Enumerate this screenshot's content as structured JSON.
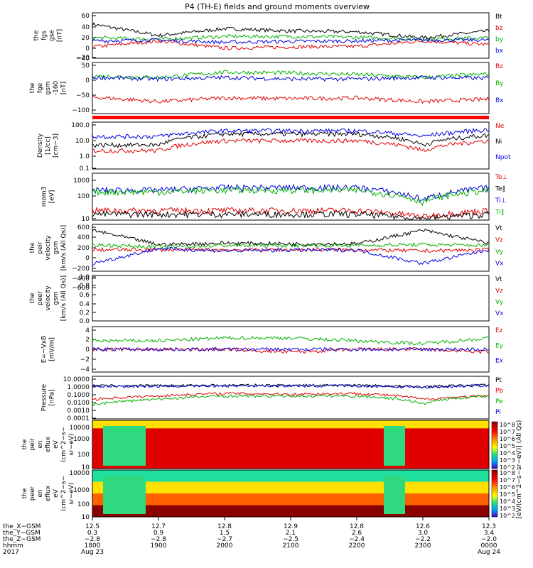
{
  "title": "P4 (TH-E) fields and ground moments overview",
  "panels": [
    {
      "ylabel": [
        "the",
        "fgs",
        "gse",
        "[nT]"
      ],
      "yticks": [
        "60",
        "40",
        "20",
        "0",
        "−20",
        "−40"
      ],
      "legend": [
        {
          "text": "Bt",
          "color": "#000000"
        },
        {
          "text": "bz",
          "color": "#e00000"
        },
        {
          "text": "by",
          "color": "#00b000"
        },
        {
          "text": "bx",
          "color": "#0000e0"
        }
      ]
    },
    {
      "ylabel": [
        "the",
        "fge",
        "gsm",
        "-160",
        "[nT]"
      ],
      "yticks": [
        "50",
        "0",
        "−50",
        "−100"
      ],
      "legend": [
        {
          "text": "Bz",
          "color": "#e00000"
        },
        {
          "text": "By",
          "color": "#00b000"
        },
        {
          "text": "Bx",
          "color": "#0000e0"
        }
      ]
    },
    {
      "ylabel": [
        "Density",
        "[1/cc]",
        "[cm−3]"
      ],
      "yticks": [
        "100.0",
        "10.0",
        "1.0",
        "0.1"
      ],
      "legend": [
        {
          "text": "Ne",
          "color": "#e00000"
        },
        {
          "text": "Ni",
          "color": "#000000"
        },
        {
          "text": "Npot",
          "color": "#0000e0"
        }
      ]
    },
    {
      "ylabel": [
        "mom3",
        "[eV]"
      ],
      "yticks": [
        "1000",
        "100",
        "10"
      ],
      "legend": [
        {
          "text": "Te⊥",
          "color": "#e00000"
        },
        {
          "text": "Te∥",
          "color": "#000000"
        },
        {
          "text": "Ti⊥",
          "color": "#0000e0"
        },
        {
          "text": "Ti∥",
          "color": "#00b000"
        }
      ]
    },
    {
      "ylabel": [
        "the",
        "peir",
        "velocity",
        "gsm",
        "[km/s (All Qs)]"
      ],
      "yticks": [
        "600",
        "400",
        "200",
        "0",
        "−200",
        "−400",
        "−600"
      ],
      "legend": [
        {
          "text": "Vt",
          "color": "#000000"
        },
        {
          "text": "Vz",
          "color": "#e00000"
        },
        {
          "text": "Vy",
          "color": "#00b000"
        },
        {
          "text": "Vx",
          "color": "#0000e0"
        }
      ]
    },
    {
      "ylabel": [
        "the",
        "peer",
        "velocity",
        "gsm",
        "[km/s (All Qs)]"
      ],
      "yticks": [
        "1.0",
        "0.8",
        "0.6",
        "0.4",
        "0.2",
        "0.0"
      ],
      "legend": [
        {
          "text": "Vt",
          "color": "#000000"
        },
        {
          "text": "Vz",
          "color": "#e00000"
        },
        {
          "text": "Vy",
          "color": "#00b000"
        },
        {
          "text": "Vx",
          "color": "#0000e0"
        }
      ]
    },
    {
      "ylabel": [
        "E=−VxB",
        "[mV/m]"
      ],
      "yticks": [
        "4",
        "2",
        "0",
        "−2",
        "−4"
      ],
      "legend": [
        {
          "text": "Ez",
          "color": "#e00000"
        },
        {
          "text": "Ey",
          "color": "#00b000"
        },
        {
          "text": "Ex",
          "color": "#0000e0"
        }
      ]
    },
    {
      "ylabel": [
        "Pressure",
        "[nPa]"
      ],
      "yticks": [
        "10.0000",
        "1.0000",
        "0.1000",
        "0.0100",
        "0.0010",
        "0.0001"
      ],
      "legend": [
        {
          "text": "Pt",
          "color": "#000000"
        },
        {
          "text": "Pb",
          "color": "#e00000"
        },
        {
          "text": "Pe",
          "color": "#00b000"
        },
        {
          "text": "Pi",
          "color": "#0000e0"
        }
      ]
    },
    {
      "ylabel": [
        "the",
        "peir",
        "en",
        "eflux",
        "eV",
        "(cm^2−s−",
        "sr−eV)"
      ],
      "yticks": [
        "10000",
        "1000",
        "100",
        "10"
      ]
    },
    {
      "ylabel": [
        "the",
        "peer",
        "en",
        "eflux",
        "eV",
        "(cm^2−s−",
        "sr−eV)"
      ],
      "yticks": [
        "10000",
        "1000",
        "100",
        "10"
      ]
    }
  ],
  "colorbar": {
    "top": {
      "ticks": [
        "10^8",
        "10^7",
        "10^6",
        "10^5",
        "10^4",
        "10^3",
        "10^2"
      ]
    },
    "bottom": {
      "ticks": [
        "10^8",
        "10^7",
        "10^6",
        "10^5",
        "10^4",
        "10^3",
        "10^2"
      ]
    },
    "label": "[eV/(cm^2−s−sr−eV)] (All Qs)"
  },
  "time_axis": {
    "row_labels": [
      "the_X−GSM",
      "the_Y−GSM",
      "the_Z−GSM",
      "hhmm",
      "2017"
    ],
    "columns": [
      [
        "12.5",
        "0.3",
        "−2.8",
        "1800",
        "Aug 23"
      ],
      [
        "12.7",
        "0.9",
        "−2.8",
        "1900",
        ""
      ],
      [
        "12.8",
        "1.5",
        "−2.7",
        "2000",
        ""
      ],
      [
        "12.9",
        "2.1",
        "−2.5",
        "2100",
        ""
      ],
      [
        "12.8",
        "2.6",
        "−2.4",
        "2200",
        ""
      ],
      [
        "12.6",
        "3.0",
        "−2.2",
        "2300",
        ""
      ],
      [
        "12.3",
        "3.4",
        "−2.0",
        "0000",
        "Aug 24"
      ]
    ]
  },
  "chart_data": {
    "type": "line",
    "title": "P4 (TH-E) fields and ground moments overview",
    "x": [
      "1800",
      "1900",
      "2000",
      "2100",
      "2200",
      "2300",
      "0000"
    ],
    "xlim": [
      "Aug 23 1800",
      "Aug 24 0000"
    ],
    "panels": [
      {
        "name": "the fgs gse [nT]",
        "ylim": [
          -40,
          60
        ],
        "series": [
          {
            "name": "Bt",
            "values": [
              35,
              10,
              25,
              20,
              18,
              5,
              20
            ]
          },
          {
            "name": "bz",
            "values": [
              -15,
              -2,
              -18,
              -15,
              -14,
              -2,
              -10
            ]
          },
          {
            "name": "by",
            "values": [
              5,
              2,
              8,
              8,
              6,
              2,
              5
            ]
          },
          {
            "name": "bx",
            "values": [
              -2,
              0,
              -5,
              -3,
              -2,
              0,
              0
            ]
          }
        ]
      },
      {
        "name": "the fge gsm -160 [nT]",
        "ylim": [
          -120,
          50
        ],
        "series": [
          {
            "name": "Bz",
            "values": [
              -65,
              -80,
              -68,
              -70,
              -68,
              -80,
              -72
            ]
          },
          {
            "name": "By",
            "values": [
              5,
              0,
              18,
              15,
              10,
              0,
              12
            ]
          },
          {
            "name": "Bx",
            "values": [
              0,
              -5,
              0,
              -5,
              -5,
              0,
              -2
            ]
          }
        ]
      },
      {
        "name": "Density [1/cc]",
        "scale": "log",
        "ylim": [
          0.1,
          200
        ],
        "series": [
          {
            "name": "Ne",
            "values": [
              2,
              2,
              10,
              10,
              10,
              2,
              10
            ]
          },
          {
            "name": "Ni",
            "values": [
              5,
              5,
              30,
              30,
              30,
              5,
              25
            ]
          },
          {
            "name": "Npot",
            "values": [
              20,
              20,
              50,
              50,
              50,
              20,
              60
            ]
          }
        ]
      },
      {
        "name": "mom3 [eV]",
        "scale": "log",
        "ylim": [
          10,
          2000
        ],
        "series": [
          {
            "name": "Te⊥",
            "values": [
              30,
              30,
              30,
              30,
              30,
              15,
              30
            ]
          },
          {
            "name": "Te∥",
            "values": [
              20,
              20,
              20,
              20,
              20,
              12,
              20
            ]
          },
          {
            "name": "Ti⊥",
            "values": [
              300,
              300,
              400,
              400,
              400,
              100,
              400
            ]
          },
          {
            "name": "Ti∥",
            "values": [
              250,
              250,
              300,
              300,
              300,
              80,
              300
            ]
          }
        ]
      },
      {
        "name": "the peir velocity gsm [km/s (All Qs)]",
        "ylim": [
          -600,
          600
        ],
        "series": [
          {
            "name": "Vt",
            "values": [
              450,
              80,
              120,
              100,
              100,
              450,
              120
            ]
          },
          {
            "name": "Vz",
            "values": [
              -50,
              -50,
              -50,
              -50,
              -50,
              -80,
              -50
            ]
          },
          {
            "name": "Vy",
            "values": [
              80,
              20,
              60,
              60,
              60,
              80,
              60
            ]
          },
          {
            "name": "Vx",
            "values": [
              -400,
              -20,
              -80,
              -60,
              -60,
              -400,
              -50
            ]
          }
        ]
      },
      {
        "name": "the peer velocity gsm [km/s (All Qs)]",
        "ylim": [
          0,
          1
        ],
        "series": []
      },
      {
        "name": "E=−VxB [mV/m]",
        "ylim": [
          -4,
          4
        ],
        "series": [
          {
            "name": "Ez",
            "values": [
              0,
              0,
              0,
              -0.5,
              0,
              0,
              -0.5
            ]
          },
          {
            "name": "Ey",
            "values": [
              1.5,
              1.5,
              2,
              2,
              1.5,
              1,
              2
            ]
          },
          {
            "name": "Ex",
            "values": [
              0,
              0,
              0,
              0,
              0,
              0,
              0
            ]
          }
        ]
      },
      {
        "name": "Pressure [nPa]",
        "scale": "log",
        "ylim": [
          0.0001,
          10
        ],
        "series": [
          {
            "name": "Pt",
            "values": [
              0.8,
              0.8,
              0.9,
              0.9,
              0.9,
              0.6,
              1
            ]
          },
          {
            "name": "Pb",
            "values": [
              0.02,
              0.05,
              0.1,
              0.08,
              0.1,
              0.02,
              0.05
            ]
          },
          {
            "name": "Pe",
            "values": [
              0.005,
              0.02,
              0.05,
              0.05,
              0.05,
              0.005,
              0.05
            ]
          },
          {
            "name": "Pi",
            "values": [
              0.7,
              0.7,
              0.8,
              0.8,
              0.8,
              0.5,
              0.9
            ]
          }
        ]
      }
    ]
  }
}
